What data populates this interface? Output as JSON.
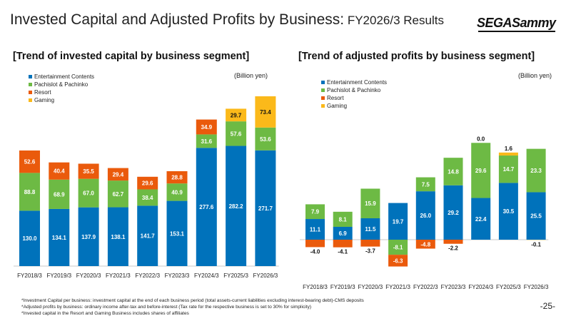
{
  "page": {
    "title_main": "Invested Capital and Adjusted Profits by Business:",
    "title_sub": " FY2026/3 Results",
    "logo": "SEGASammy",
    "page_number": "-25-",
    "notes": [
      "*Investment Capital per business: investment capital at the end of each business period (total assets-current liabilities excluding interest-bearing debt)-CMS deposits",
      "*Adjusted profits by business: ordinary income after-tax and before-interest (Tax rate for the respective business is set to 30% for simplicity)",
      "*Invested capital in the Resort and Gaming Business includes shares of affiliates"
    ]
  },
  "colors": {
    "Entertainment Contents": "#0072bb",
    "Pachislot & Pachinko": "#6dba44",
    "Resort": "#ea5a0c",
    "Gaming": "#fbb91a"
  },
  "chart_data": [
    {
      "type": "bar",
      "stacked": true,
      "title": "[Trend of invested capital by business segment]",
      "unit": "(Billion yen)",
      "categories": [
        "FY2018/3",
        "FY2019/3",
        "FY2020/3",
        "FY2021/3",
        "FY2022/3",
        "FY2023/3",
        "FY2024/3",
        "FY2025/3",
        "FY2026/3"
      ],
      "series": [
        {
          "name": "Entertainment Contents",
          "values": [
            130.0,
            134.1,
            137.9,
            138.1,
            141.7,
            153.1,
            277.6,
            282.2,
            271.7
          ]
        },
        {
          "name": "Pachislot & Pachinko",
          "values": [
            88.8,
            68.9,
            67.0,
            62.7,
            38.4,
            40.9,
            31.6,
            57.6,
            53.6
          ]
        },
        {
          "name": "Resort",
          "values": [
            52.6,
            40.4,
            35.5,
            29.4,
            29.6,
            28.8,
            34.9,
            null,
            null
          ]
        },
        {
          "name": "Gaming",
          "values": [
            null,
            null,
            null,
            null,
            null,
            null,
            null,
            29.7,
            73.4
          ]
        }
      ],
      "legend_position": "top-left"
    },
    {
      "type": "bar",
      "stacked": true,
      "title": "[Trend of adjusted profits by business segment]",
      "unit": "(Billion yen)",
      "categories": [
        "FY2018/3",
        "FY2019/3",
        "FY2020/3",
        "FY2021/3",
        "FY2022/3",
        "FY2023/3",
        "FY2024/3",
        "FY2025/3",
        "FY2026/3"
      ],
      "series": [
        {
          "name": "Entertainment Contents",
          "values": [
            11.1,
            6.9,
            11.5,
            19.7,
            26.0,
            29.2,
            22.4,
            30.5,
            25.5
          ]
        },
        {
          "name": "Pachislot & Pachinko",
          "values": [
            7.9,
            8.1,
            15.9,
            -8.1,
            7.5,
            14.8,
            29.6,
            14.7,
            23.3
          ]
        },
        {
          "name": "Resort",
          "values": [
            -4.0,
            -4.1,
            -3.7,
            -6.3,
            -4.8,
            -2.2,
            null,
            null,
            null
          ]
        },
        {
          "name": "Gaming",
          "values": [
            null,
            null,
            null,
            null,
            null,
            null,
            0.0,
            1.6,
            -0.1
          ]
        }
      ],
      "legend_position": "top-left"
    }
  ]
}
